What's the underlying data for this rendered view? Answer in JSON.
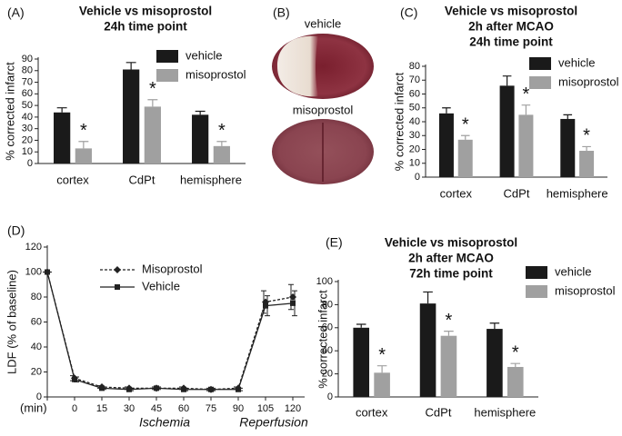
{
  "chart_data": [
    {
      "type": "bar",
      "panel_label": "(A)",
      "title": [
        "Vehicle vs misoprostol",
        "24h time point"
      ],
      "ylabel": "% corrected infarct",
      "categories": [
        "cortex",
        "CdPt",
        "hemisphere"
      ],
      "series": [
        {
          "name": "vehicle",
          "color": "#1a1a1a",
          "values": [
            44,
            81,
            42
          ],
          "errors": [
            4,
            6,
            3
          ]
        },
        {
          "name": "misoprostol",
          "color": "#a0a0a0",
          "values": [
            13,
            49,
            15
          ],
          "errors": [
            6,
            6,
            4
          ]
        }
      ],
      "significance": [
        "*",
        "*",
        "*"
      ],
      "ylim": [
        0,
        90
      ],
      "yticks": [
        0,
        10,
        20,
        30,
        40,
        50,
        60,
        70,
        80,
        90
      ],
      "legend": "upper right"
    },
    {
      "type": "bar",
      "panel_label": "(C)",
      "title": [
        "Vehicle vs misoprostol",
        "2h after MCAO",
        "24h time point"
      ],
      "ylabel": "% corrected infarct",
      "categories": [
        "cortex",
        "CdPt",
        "hemisphere"
      ],
      "series": [
        {
          "name": "vehicle",
          "color": "#1a1a1a",
          "values": [
            46,
            66,
            42
          ],
          "errors": [
            4,
            7,
            3
          ]
        },
        {
          "name": "misoprostol",
          "color": "#a0a0a0",
          "values": [
            27,
            45,
            19
          ],
          "errors": [
            3,
            7,
            3
          ]
        }
      ],
      "significance": [
        "*",
        "*",
        "*"
      ],
      "ylim": [
        0,
        80
      ],
      "yticks": [
        0,
        10,
        20,
        30,
        40,
        50,
        60,
        70,
        80
      ],
      "legend": "upper right"
    },
    {
      "type": "line",
      "panel_label": "(D)",
      "ylabel": "LDF (% of baseline)",
      "x_unit": "(min)",
      "categories": [
        null,
        "0",
        "15",
        "30",
        "45",
        "60",
        "75",
        "90",
        "105",
        "120"
      ],
      "phase_labels": [
        "Ischemia",
        "Reperfusion"
      ],
      "series": [
        {
          "name": "Misoprostol",
          "color": "#222222",
          "dash": "dashed",
          "marker": "diamond",
          "values": [
            100,
            15,
            8,
            7,
            7,
            7,
            6,
            7,
            76,
            80
          ],
          "errors": [
            0,
            2,
            1,
            1,
            1,
            1,
            1,
            1,
            9,
            10
          ]
        },
        {
          "name": "Vehicle",
          "color": "#222222",
          "dash": "solid",
          "marker": "square",
          "values": [
            100,
            14,
            7,
            6,
            7,
            6,
            6,
            6,
            73,
            75
          ],
          "errors": [
            0,
            2,
            1,
            1,
            1,
            1,
            1,
            1,
            8,
            10
          ]
        }
      ],
      "ylim": [
        0,
        120
      ],
      "yticks": [
        0,
        20,
        40,
        60,
        80,
        100,
        120
      ],
      "legend": "upper left"
    },
    {
      "type": "bar",
      "panel_label": "(E)",
      "title": [
        "Vehicle vs misoprostol",
        "2h after MCAO",
        "72h time point"
      ],
      "ylabel": "% corrected infarct",
      "categories": [
        "cortex",
        "CdPt",
        "hemisphere"
      ],
      "series": [
        {
          "name": "vehicle",
          "color": "#1a1a1a",
          "values": [
            60,
            81,
            59
          ],
          "errors": [
            3,
            10,
            5
          ]
        },
        {
          "name": "misoprostol",
          "color": "#a0a0a0",
          "values": [
            21,
            53,
            26
          ],
          "errors": [
            6,
            4,
            3
          ]
        }
      ],
      "significance": [
        "*",
        "*",
        "*"
      ],
      "ylim": [
        0,
        100
      ],
      "yticks": [
        0,
        20,
        40,
        60,
        80,
        100
      ],
      "legend": "upper right"
    }
  ],
  "panel_b": {
    "panel_label": "(B)",
    "captions": [
      "vehicle",
      "misoprostol"
    ]
  }
}
